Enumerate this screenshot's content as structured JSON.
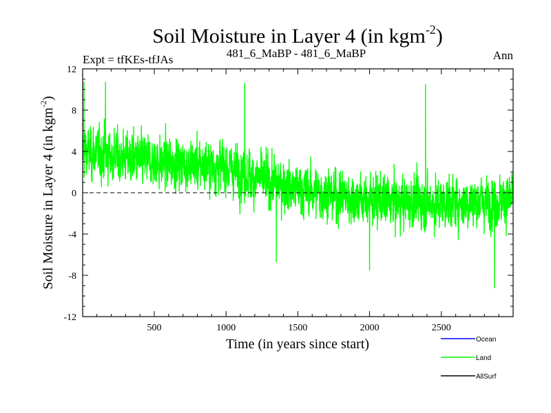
{
  "header": {
    "title": "Soil Moisture in Layer 4 (in kgm",
    "title_sup": "-2",
    "title_close": ")",
    "left_label": "Expt = tfKEs-tfJAs",
    "center_label": "481_6_MaBP - 481_6_MaBP",
    "right_label": "Ann"
  },
  "colors": {
    "ocean": "#0000ff",
    "land": "#00ff00",
    "allsurf": "#000000",
    "axes": "#000000",
    "zero_line": "#000000"
  },
  "chart_data": {
    "type": "line",
    "title": "Soil Moisture in Layer 4 (in kgm-2)",
    "xlabel": "Time (in years since start)",
    "ylabel": "Soil Moisture in Layer 4 (in kgm-2)",
    "ylabel_main": "Soil Moisture in Layer 4 (in kgm",
    "ylabel_sup": "-2",
    "ylabel_close": ")",
    "xlim": [
      1,
      3000
    ],
    "ylim": [
      -12,
      12
    ],
    "x_ticks": [
      500,
      1000,
      1500,
      2000,
      2500
    ],
    "x_tick_labels": [
      "500",
      "1000",
      "1500",
      "2000",
      "2500"
    ],
    "y_ticks": [
      -12,
      -8,
      -4,
      0,
      4,
      8,
      12
    ],
    "y_tick_labels": [
      "-12",
      "-8",
      "-4",
      "0",
      "4",
      "8",
      "12"
    ],
    "zero_line": true,
    "grid": false,
    "legend_position": "bottom-right",
    "legend": [
      {
        "name": "Ocean",
        "color": "#0000ff"
      },
      {
        "name": "Land",
        "color": "#00ff00"
      },
      {
        "name": "AllSurf",
        "color": "#000000"
      }
    ],
    "series": [
      {
        "name": "Land",
        "color": "#00ff00",
        "trend_points": [
          {
            "x": 1,
            "y": 4.0
          },
          {
            "x": 500,
            "y": 3.0
          },
          {
            "x": 1000,
            "y": 2.5
          },
          {
            "x": 1200,
            "y": 1.5
          },
          {
            "x": 1500,
            "y": 0.3
          },
          {
            "x": 2000,
            "y": -0.8
          },
          {
            "x": 2500,
            "y": -1.0
          },
          {
            "x": 3000,
            "y": -0.7
          }
        ],
        "noise_amplitude": 2.6,
        "approx_max": 10.7,
        "approx_min": -9.2,
        "peaks": [
          {
            "x": 10,
            "y": 10.7
          },
          {
            "x": 160,
            "y": 10.7
          },
          {
            "x": 1130,
            "y": 10.6
          },
          {
            "x": 2390,
            "y": 10.5
          },
          {
            "x": 2870,
            "y": -9.2
          },
          {
            "x": 2000,
            "y": -7.5
          },
          {
            "x": 1350,
            "y": -6.7
          }
        ]
      }
    ]
  }
}
